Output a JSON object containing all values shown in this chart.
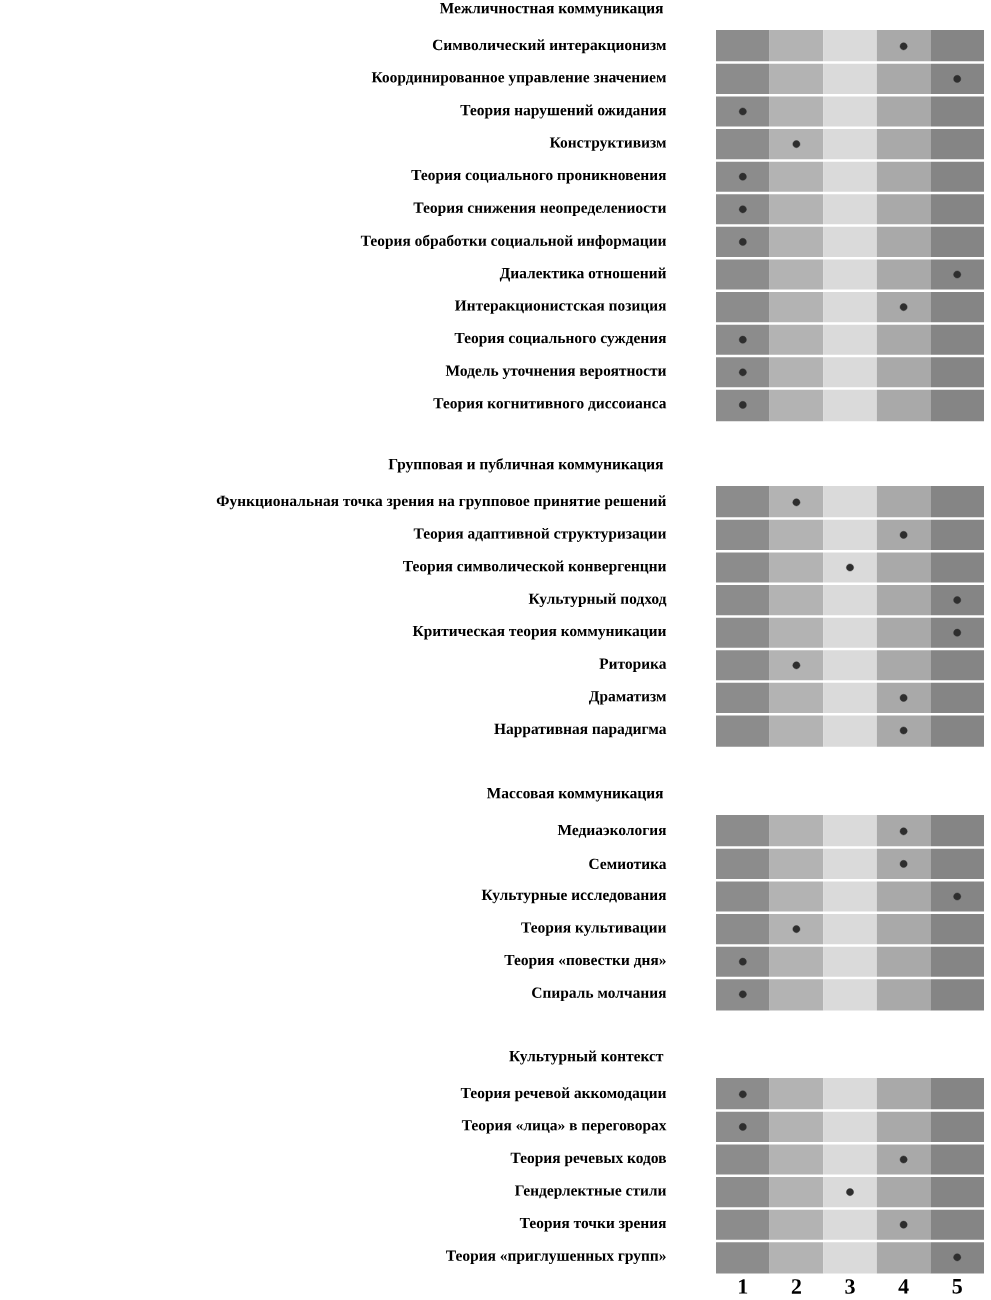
{
  "chart_data": [
    {
      "type": "scatter",
      "title": "Межличностная коммуникация",
      "orientation": "horizontal",
      "marker": "circle",
      "color": "#2e2e2e",
      "tick_labels": "y",
      "xlim": [
        0.5,
        5.5
      ],
      "xticks": [
        1,
        2,
        3,
        4,
        5
      ],
      "categories": [
        "Символический интеракционизм",
        "Координированное управление значением",
        "Теория нарушений ожидания",
        "Конструктивизм",
        "Теория социального проникновения",
        "Теория снижения неопределениости",
        "Теория обработки социальной информации",
        "Диалектика отношений",
        "Интеракционистская позиция",
        "Теория социального суждения",
        "Модель уточнения вероятности",
        "Теория когнитивного диссоианса"
      ],
      "values": [
        4,
        5,
        1,
        2,
        1,
        1,
        1,
        5,
        4,
        1,
        1,
        1
      ],
      "bands": [
        {
          "axis": "x",
          "from": 0.5,
          "to": 1.5,
          "color": "#8c8c8c"
        },
        {
          "axis": "x",
          "from": 1.5,
          "to": 2.5,
          "color": "#b3b3b3"
        },
        {
          "axis": "x",
          "from": 2.5,
          "to": 3.5,
          "color": "#dadada"
        },
        {
          "axis": "x",
          "from": 3.5,
          "to": 4.5,
          "color": "#a9a9a9"
        },
        {
          "axis": "x",
          "from": 4.5,
          "to": 5.5,
          "color": "#858585"
        }
      ]
    },
    {
      "type": "scatter",
      "title": "Групповая и публичная коммуникация",
      "orientation": "horizontal",
      "marker": "circle",
      "color": "#2e2e2e",
      "tick_labels": "y",
      "xlim": [
        0.5,
        5.5
      ],
      "xticks": [
        1,
        2,
        3,
        4,
        5
      ],
      "categories": [
        "Функциональная точка зрения на групповое принятие решений",
        "Теория адаптивной структуризации",
        "Теория символической конвергенцни",
        "Культурный подход",
        "Критическая теория коммуникации",
        "Риторика",
        "Драматизм",
        "Нарративная парадигма"
      ],
      "values": [
        2,
        4,
        3,
        5,
        5,
        2,
        4,
        4
      ],
      "bands": [
        {
          "axis": "x",
          "from": 0.5,
          "to": 1.5,
          "color": "#8c8c8c"
        },
        {
          "axis": "x",
          "from": 1.5,
          "to": 2.5,
          "color": "#b3b3b3"
        },
        {
          "axis": "x",
          "from": 2.5,
          "to": 3.5,
          "color": "#dadada"
        },
        {
          "axis": "x",
          "from": 3.5,
          "to": 4.5,
          "color": "#a9a9a9"
        },
        {
          "axis": "x",
          "from": 4.5,
          "to": 5.5,
          "color": "#858585"
        }
      ]
    },
    {
      "type": "scatter",
      "title": "Массовая коммуникация",
      "orientation": "horizontal",
      "marker": "circle",
      "color": "#2e2e2e",
      "tick_labels": "y",
      "xlim": [
        0.5,
        5.5
      ],
      "xticks": [
        1,
        2,
        3,
        4,
        5
      ],
      "categories": [
        "Медиаэкология",
        "Семиотика",
        "Культурные исследования",
        "Теория культивации",
        "Теория «повестки дня»",
        "Спираль молчания"
      ],
      "values": [
        4,
        4,
        5,
        2,
        1,
        1
      ],
      "bands": [
        {
          "axis": "x",
          "from": 0.5,
          "to": 1.5,
          "color": "#8c8c8c"
        },
        {
          "axis": "x",
          "from": 1.5,
          "to": 2.5,
          "color": "#b3b3b3"
        },
        {
          "axis": "x",
          "from": 2.5,
          "to": 3.5,
          "color": "#dadada"
        },
        {
          "axis": "x",
          "from": 3.5,
          "to": 4.5,
          "color": "#a9a9a9"
        },
        {
          "axis": "x",
          "from": 4.5,
          "to": 5.5,
          "color": "#858585"
        }
      ]
    },
    {
      "type": "scatter",
      "title": "Культурный контекст",
      "orientation": "horizontal",
      "marker": "circle",
      "color": "#2e2e2e",
      "xlim": [
        0.5,
        5.5
      ],
      "xticks": [
        1,
        2,
        3,
        4,
        5
      ],
      "categories": [
        "Теория речевой аккомодации",
        "Теория «лица» в переговорах",
        "Теория речевых кодов",
        "Гендерлектные стили",
        "Теория точки зрения",
        "Теория «приглушенных групп»"
      ],
      "values": [
        1,
        1,
        4,
        3,
        4,
        5
      ],
      "bands": [
        {
          "axis": "x",
          "from": 0.5,
          "to": 1.5,
          "color": "#8c8c8c"
        },
        {
          "axis": "x",
          "from": 1.5,
          "to": 2.5,
          "color": "#b3b3b3"
        },
        {
          "axis": "x",
          "from": 2.5,
          "to": 3.5,
          "color": "#dadada"
        },
        {
          "axis": "x",
          "from": 3.5,
          "to": 4.5,
          "color": "#a9a9a9"
        },
        {
          "axis": "x",
          "from": 4.5,
          "to": 5.5,
          "color": "#858585"
        }
      ]
    }
  ]
}
